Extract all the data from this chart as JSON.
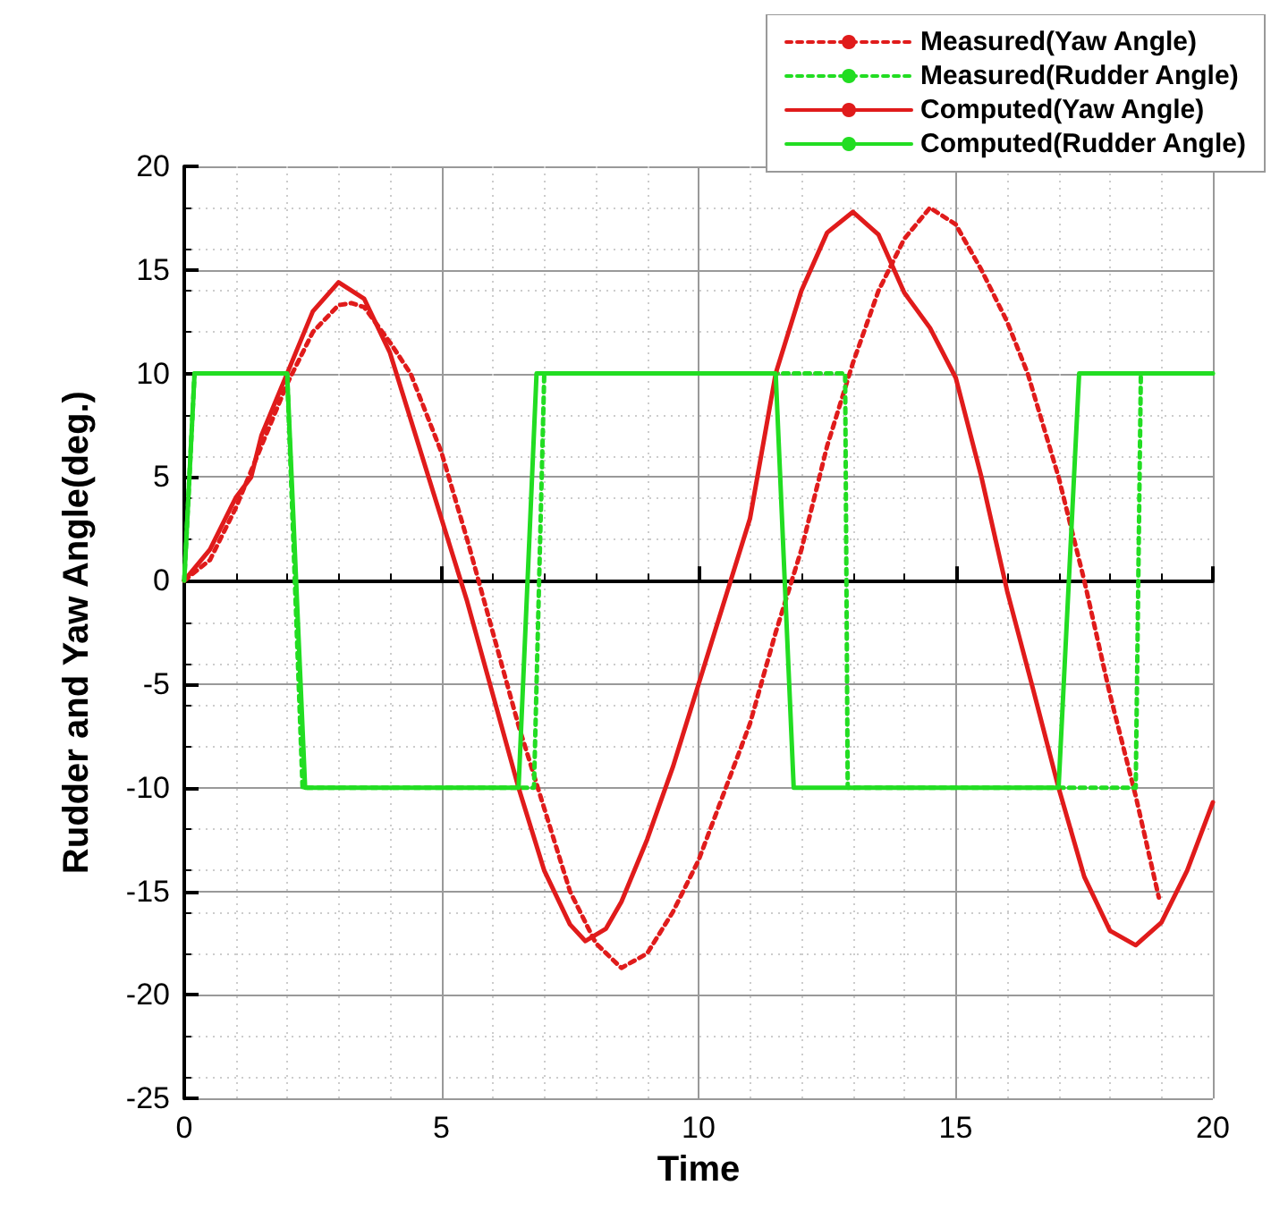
{
  "chart_data": {
    "type": "line",
    "xlabel": "Time",
    "ylabel": "Rudder and Yaw Angle(deg.)",
    "xlim": [
      0,
      20
    ],
    "xticks": [
      0,
      5,
      10,
      15,
      20
    ],
    "ylim": [
      -25,
      20
    ],
    "yticks": [
      -25,
      -20,
      -15,
      -10,
      -5,
      0,
      5,
      10,
      15,
      20
    ],
    "grid": true,
    "legend": "top right",
    "marker": "none",
    "series": [
      {
        "name": "Measured(Yaw Angle)",
        "color": "#e01b1b",
        "line_style": "dotted",
        "x": [
          0,
          0.5,
          1,
          1.5,
          2,
          2.5,
          3,
          3.25,
          3.5,
          4,
          4.4,
          5,
          5.5,
          6,
          6.5,
          7,
          7.5,
          8,
          8.5,
          9,
          9.5,
          10,
          10.5,
          11,
          11.5,
          12,
          12.5,
          13,
          13.5,
          14,
          14.5,
          15,
          15.5,
          16,
          16.4,
          17,
          17.5,
          18,
          18.5,
          18.95
        ],
        "values": [
          0,
          1,
          3.5,
          6.5,
          9.5,
          12,
          13.3,
          13.4,
          13.2,
          11.5,
          10,
          6.2,
          2,
          -2.5,
          -7,
          -11,
          -15,
          -17.5,
          -18.7,
          -18,
          -16,
          -13.5,
          -10.2,
          -6.9,
          -2.5,
          1.5,
          6.5,
          10.5,
          14,
          16.5,
          18,
          17.2,
          15,
          12.5,
          10,
          5,
          0,
          -5.5,
          -10.4,
          -15.3
        ]
      },
      {
        "name": "Measured(Rudder Angle)",
        "color": "#22dd22",
        "line_style": "dotted",
        "x": [
          0,
          0.2,
          2,
          2.3,
          6.8,
          7,
          12.85,
          12.9,
          18.5,
          18.6,
          20
        ],
        "values": [
          0,
          10,
          10,
          -10,
          -10,
          10,
          10,
          -10,
          -10,
          10,
          10
        ]
      },
      {
        "name": "Computed(Yaw Angle)",
        "color": "#e01b1b",
        "line_style": "solid",
        "x": [
          0,
          0.5,
          1,
          1.3,
          1.5,
          2,
          2.5,
          3,
          3.5,
          4,
          4.5,
          5,
          5.5,
          6,
          6.5,
          7,
          7.5,
          7.8,
          8.2,
          8.5,
          9,
          9.5,
          10,
          10.5,
          11,
          11.5,
          12,
          12.5,
          13,
          13.5,
          14,
          14.5,
          15,
          15.5,
          16,
          16.5,
          17,
          17.5,
          18,
          18.5,
          19,
          19.5,
          20
        ],
        "values": [
          0,
          1.5,
          4,
          5,
          7,
          10,
          13,
          14.4,
          13.6,
          11,
          7,
          3,
          -1,
          -5.5,
          -10,
          -14,
          -16.6,
          -17.4,
          -16.8,
          -15.5,
          -12.5,
          -9,
          -5,
          -1,
          3,
          10,
          14,
          16.8,
          17.8,
          16.7,
          13.9,
          12.2,
          9.8,
          5,
          -0.5,
          -5.2,
          -10,
          -14.3,
          -16.9,
          -17.6,
          -16.5,
          -14,
          -10.7
        ]
      },
      {
        "name": "Computed(Rudder Angle)",
        "color": "#22dd22",
        "line_style": "solid",
        "x": [
          0,
          0.2,
          2,
          2.35,
          6.5,
          6.85,
          11.5,
          11.85,
          17,
          17.4,
          20
        ],
        "values": [
          0,
          10,
          10,
          -10,
          -10,
          10,
          10,
          -10,
          -10,
          10,
          10
        ]
      }
    ]
  }
}
